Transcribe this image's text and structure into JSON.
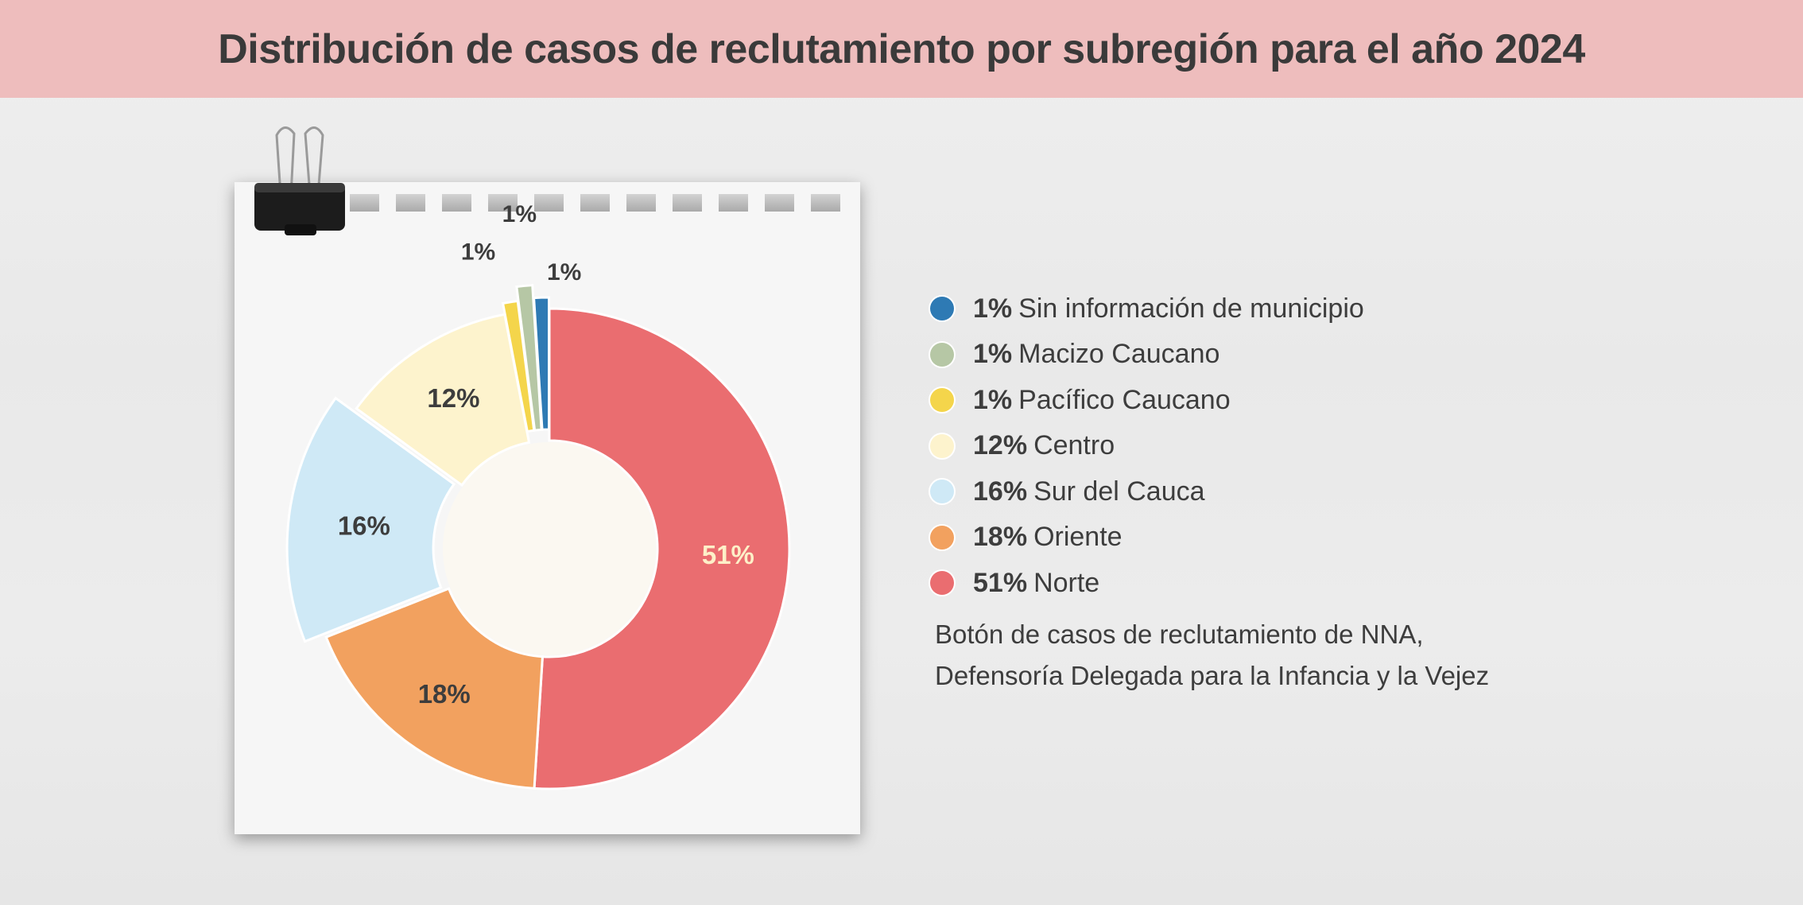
{
  "chart_data": {
    "type": "pie",
    "variant": "donut",
    "title": "Distribución de casos de reclutamiento por subregión para el año 2024",
    "categories": [
      "Norte",
      "Oriente",
      "Sur del Cauca",
      "Centro",
      "Pacífico Caucano",
      "Macizo Caucano",
      "Sin información de municipio"
    ],
    "values": [
      51,
      18,
      16,
      12,
      1,
      1,
      1
    ],
    "labels": [
      "51%",
      "18%",
      "16%",
      "12%",
      "1%",
      "1%",
      "1%"
    ],
    "colors": [
      "#ea6d70",
      "#f2a15f",
      "#cfe9f6",
      "#fdf3cd",
      "#f4d54b",
      "#b6c7a5",
      "#2e7ab4"
    ],
    "legend_placement": "right",
    "legend": [
      {
        "pct": "1%",
        "label": "Sin información de municipio",
        "color": "#2e7ab4"
      },
      {
        "pct": "1%",
        "label": "Macizo Caucano",
        "color": "#b6c7a5"
      },
      {
        "pct": "1%",
        "label": "Pacífico Caucano",
        "color": "#f4d54b"
      },
      {
        "pct": "12%",
        "label": "Centro",
        "color": "#fdf3cd"
      },
      {
        "pct": "16%",
        "label": "Sur del Cauca",
        "color": "#cfe9f6"
      },
      {
        "pct": "18%",
        "label": "Oriente",
        "color": "#f2a15f"
      },
      {
        "pct": "51%",
        "label": "Norte",
        "color": "#ea6d70"
      }
    ],
    "source": [
      "Botón de casos de reclutamiento de NNA,",
      "Defensoría Delegada para la Infancia y la Vejez"
    ]
  }
}
